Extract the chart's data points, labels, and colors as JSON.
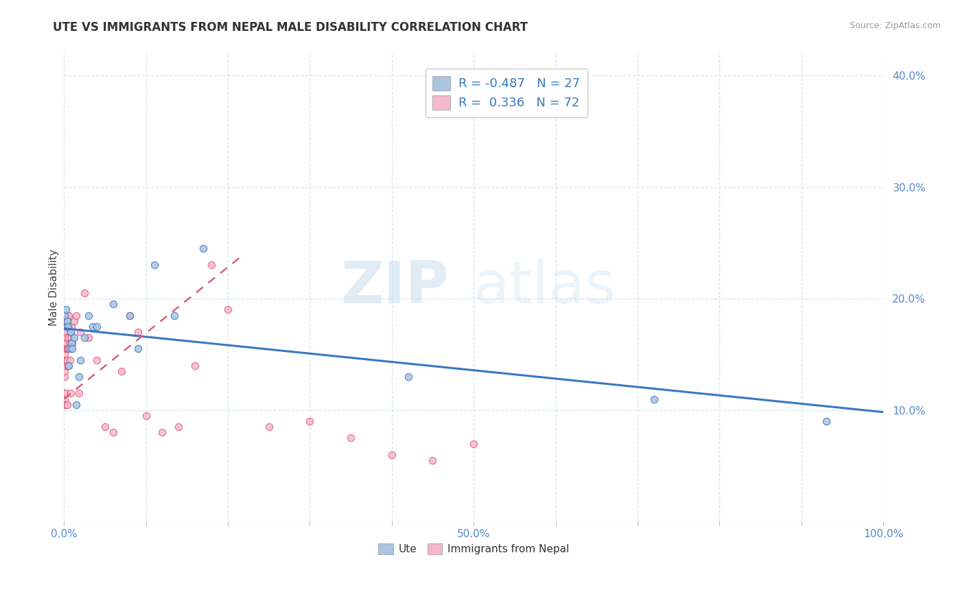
{
  "title": "UTE VS IMMIGRANTS FROM NEPAL MALE DISABILITY CORRELATION CHART",
  "source": "Source: ZipAtlas.com",
  "ylabel": "Male Disability",
  "xlim": [
    0,
    1.0
  ],
  "ylim": [
    0,
    0.42
  ],
  "ute_color": "#aac4e2",
  "nepal_color": "#f5b8cb",
  "ute_line_color": "#3878c0",
  "nepal_line_color": "#d9607a",
  "R_ute": -0.487,
  "N_ute": 27,
  "R_nepal": 0.336,
  "N_nepal": 72,
  "watermark_zip": "ZIP",
  "watermark_atlas": "atlas",
  "ute_scatter_x": [
    0.001,
    0.002,
    0.003,
    0.004,
    0.005,
    0.006,
    0.007,
    0.008,
    0.009,
    0.01,
    0.012,
    0.015,
    0.018,
    0.02,
    0.025,
    0.03,
    0.035,
    0.04,
    0.06,
    0.08,
    0.09,
    0.11,
    0.135,
    0.17,
    0.42,
    0.72,
    0.93
  ],
  "ute_scatter_y": [
    0.185,
    0.19,
    0.175,
    0.18,
    0.175,
    0.14,
    0.155,
    0.17,
    0.16,
    0.155,
    0.165,
    0.105,
    0.13,
    0.145,
    0.165,
    0.185,
    0.175,
    0.175,
    0.195,
    0.185,
    0.155,
    0.23,
    0.185,
    0.245,
    0.13,
    0.11,
    0.09
  ],
  "nepal_scatter_x": [
    0.001,
    0.001,
    0.001,
    0.001,
    0.001,
    0.001,
    0.001,
    0.001,
    0.001,
    0.001,
    0.001,
    0.001,
    0.001,
    0.001,
    0.001,
    0.001,
    0.001,
    0.001,
    0.002,
    0.002,
    0.002,
    0.002,
    0.002,
    0.002,
    0.002,
    0.002,
    0.003,
    0.003,
    0.003,
    0.003,
    0.003,
    0.004,
    0.004,
    0.004,
    0.004,
    0.005,
    0.005,
    0.005,
    0.006,
    0.006,
    0.006,
    0.007,
    0.007,
    0.008,
    0.008,
    0.009,
    0.009,
    0.01,
    0.012,
    0.015,
    0.018,
    0.02,
    0.025,
    0.03,
    0.04,
    0.05,
    0.06,
    0.07,
    0.08,
    0.09,
    0.1,
    0.12,
    0.14,
    0.16,
    0.18,
    0.2,
    0.25,
    0.3,
    0.35,
    0.4,
    0.45,
    0.5
  ],
  "nepal_scatter_y": [
    0.14,
    0.11,
    0.13,
    0.16,
    0.105,
    0.145,
    0.135,
    0.17,
    0.165,
    0.165,
    0.15,
    0.165,
    0.175,
    0.16,
    0.18,
    0.185,
    0.115,
    0.17,
    0.18,
    0.155,
    0.185,
    0.155,
    0.14,
    0.16,
    0.145,
    0.115,
    0.165,
    0.185,
    0.155,
    0.105,
    0.145,
    0.18,
    0.155,
    0.105,
    0.145,
    0.185,
    0.155,
    0.14,
    0.165,
    0.185,
    0.155,
    0.16,
    0.145,
    0.17,
    0.115,
    0.165,
    0.175,
    0.16,
    0.18,
    0.185,
    0.115,
    0.17,
    0.205,
    0.165,
    0.145,
    0.085,
    0.08,
    0.135,
    0.185,
    0.17,
    0.095,
    0.08,
    0.085,
    0.14,
    0.23,
    0.19,
    0.085,
    0.09,
    0.075,
    0.06,
    0.055,
    0.07
  ],
  "nepal_line_x": [
    0.0,
    0.22
  ],
  "nepal_line_y_start": 0.11,
  "nepal_line_y_end": 0.24
}
